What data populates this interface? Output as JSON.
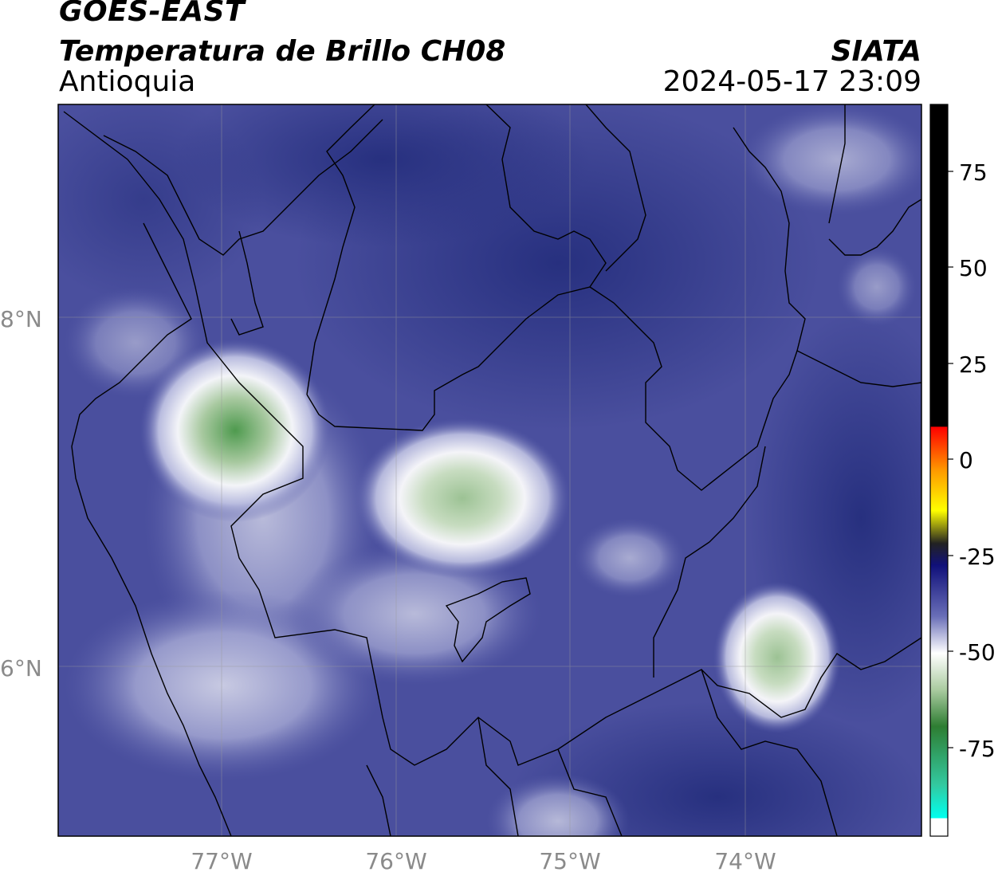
{
  "header": {
    "satellite": "GOES-EAST",
    "product": "Temperatura de Brillo CH08",
    "region": "Antioquia",
    "organization": "SIATA",
    "timestamp": "2024-05-17 23:09"
  },
  "map": {
    "lat_labels": [
      "8°N",
      "6°N"
    ],
    "lon_labels": [
      "77°W",
      "76°W",
      "75°W",
      "74°W"
    ],
    "colors": {
      "background_dark": "#27307f",
      "background_mid": "#4a4f9e",
      "cloud_light": "#c9cce6",
      "cloud_white": "#f2f2f7",
      "cloud_green": "#7fae7a",
      "border": "#000000",
      "grid": "#9a9a9a"
    }
  },
  "colorbar": {
    "ticks": [
      "75",
      "50",
      "25",
      "0",
      "-25",
      "-50",
      "-75"
    ]
  }
}
